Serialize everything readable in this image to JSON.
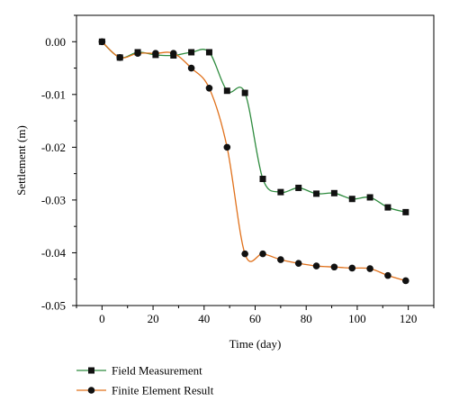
{
  "chart_data": {
    "type": "line",
    "xlabel": "Time (day)",
    "ylabel": "Settlement (m)",
    "xlim": [
      -10,
      130
    ],
    "ylim": [
      -0.05,
      0.005
    ],
    "xticks": [
      0,
      20,
      40,
      60,
      80,
      100,
      120
    ],
    "yticks": [
      0.0,
      -0.01,
      -0.02,
      -0.03,
      -0.04,
      -0.05
    ],
    "xtick_labels": [
      "0",
      "20",
      "40",
      "60",
      "80",
      "100",
      "120"
    ],
    "ytick_labels": [
      "0.00",
      "-0.01",
      "-0.02",
      "-0.03",
      "-0.04",
      "-0.05"
    ],
    "grid": false,
    "legend_position": "bottom-left",
    "series": [
      {
        "name": "Field Measurement",
        "color": "#2e8b3e",
        "marker": "square",
        "x": [
          0,
          7,
          14,
          21,
          28,
          35,
          42,
          49,
          56,
          63,
          70,
          77,
          84,
          91,
          98,
          105,
          112,
          119
        ],
        "y": [
          0.0,
          -0.003,
          -0.002,
          -0.0025,
          -0.0026,
          -0.002,
          -0.002,
          -0.0093,
          -0.0097,
          -0.026,
          -0.0285,
          -0.0277,
          -0.0288,
          -0.0287,
          -0.0298,
          -0.0295,
          -0.0314,
          -0.0323
        ]
      },
      {
        "name": "Finite Element Result",
        "color": "#e0701a",
        "marker": "circle",
        "x": [
          0,
          7,
          14,
          21,
          28,
          35,
          42,
          49,
          56,
          63,
          70,
          77,
          84,
          91,
          98,
          105,
          112,
          119
        ],
        "y": [
          0.0,
          -0.003,
          -0.0022,
          -0.0022,
          -0.0022,
          -0.005,
          -0.0088,
          -0.02,
          -0.0402,
          -0.0402,
          -0.0413,
          -0.042,
          -0.0425,
          -0.0427,
          -0.0429,
          -0.043,
          -0.0443,
          -0.0453
        ]
      }
    ]
  }
}
